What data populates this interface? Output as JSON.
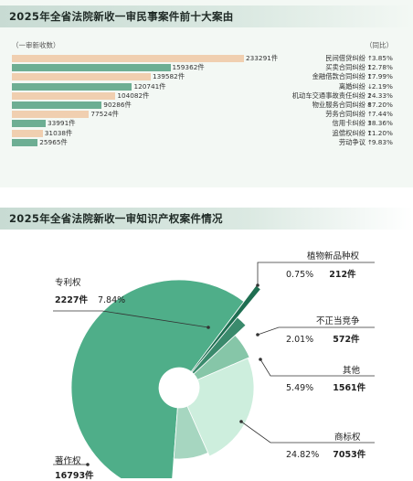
{
  "section1": {
    "title": "2025年全省法院新收一审民事案件前十大案由",
    "unit_left": "（一审新收数）",
    "unit_right": "（同比）"
  },
  "section2": {
    "title": "2025年全省法院新收一审知识产权案件情况"
  },
  "chart_data": [
    {
      "type": "bar",
      "orientation": "horizontal",
      "title": "2025年全省法院新收一审民事案件前十大案由",
      "xlabel": "一审新收数",
      "categories": [
        "民间借贷纠纷",
        "买卖合同纠纷",
        "金融借款合同纠纷",
        "离婚纠纷",
        "机动车交通事故责任纠纷",
        "物业服务合同纠纷",
        "劳务合同纠纷",
        "信用卡纠纷",
        "追偿权纠纷",
        "劳动争议"
      ],
      "values": [
        233291,
        159362,
        139582,
        120741,
        104082,
        90286,
        77524,
        33991,
        31038,
        25965
      ],
      "value_labels": [
        "233291件",
        "159362件",
        "139582件",
        "120741件",
        "104082件",
        "90286件",
        "77524件",
        "33991件",
        "31038件",
        "25965件"
      ],
      "yoy_direction": [
        "↑",
        "↑",
        "↑",
        "↓",
        "↑",
        "↑",
        "↑",
        "↑",
        "↑",
        "↑"
      ],
      "yoy_labels": [
        "3.85%",
        "12.78%",
        "17.99%",
        "2.19%",
        "24.33%",
        "87.20%",
        "7.44%",
        "38.36%",
        "11.20%",
        "9.83%"
      ],
      "bar_colors": [
        "#f0cfb0",
        "#6dae93",
        "#f0cfb0",
        "#6dae93",
        "#f0cfb0",
        "#6dae93",
        "#f0cfb0",
        "#6dae93",
        "#f0cfb0",
        "#6dae93"
      ],
      "xlim": [
        0,
        233291
      ]
    },
    {
      "type": "pie",
      "variant": "donut",
      "title": "2025年全省法院新收一审知识产权案件情况",
      "slices": [
        {
          "name": "著作权",
          "count": 16793,
          "count_label": "16793件",
          "percent": 59.09,
          "percent_label": "",
          "color": "#4fae89"
        },
        {
          "name": "植物新品种权",
          "count": 212,
          "count_label": "212件",
          "percent": 0.75,
          "percent_label": "0.75%",
          "color": "#1f6f52"
        },
        {
          "name": "不正当竞争",
          "count": 572,
          "count_label": "572件",
          "percent": 2.01,
          "percent_label": "2.01%",
          "color": "#3a8a6c"
        },
        {
          "name": "其他",
          "count": 1561,
          "count_label": "1561件",
          "percent": 5.49,
          "percent_label": "5.49%",
          "color": "#86c6a8"
        },
        {
          "name": "商标权",
          "count": 7053,
          "count_label": "7053件",
          "percent": 24.82,
          "percent_label": "24.82%",
          "color": "#cdeedd"
        },
        {
          "name": "专利权",
          "count": 2227,
          "count_label": "2227件",
          "percent": 7.84,
          "percent_label": "7.84%",
          "color": "#a6d6c0"
        }
      ]
    }
  ]
}
